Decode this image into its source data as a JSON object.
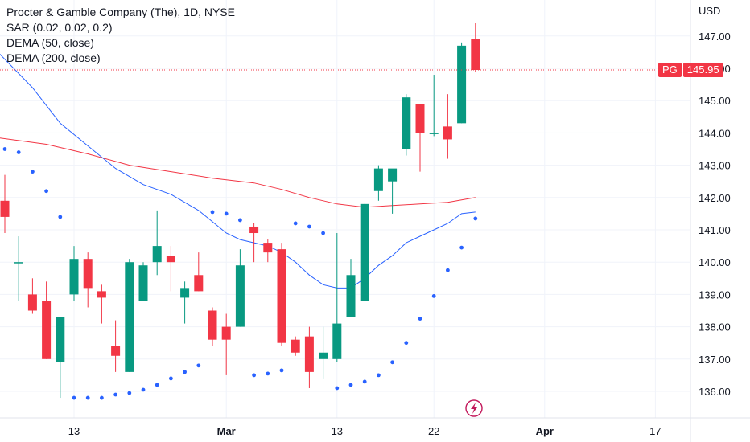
{
  "legend": {
    "title": "Procter & Gamble Company (The), 1D, NYSE",
    "sar": "SAR (0.02, 0.02, 0.2)",
    "dema50": "DEMA (50, close)",
    "dema200": "DEMA (200, close)"
  },
  "axis": {
    "currency": "USD"
  },
  "last_price": {
    "symbol": "PG",
    "value": "145.95"
  },
  "colors": {
    "up": "#089981",
    "down": "#f23645",
    "dema50": "#2962ff",
    "dema200": "#f23645",
    "sar": "#2962ff",
    "grid": "#f0f3fa"
  },
  "chart_data": {
    "type": "candlestick",
    "ylim": [
      135.2,
      148.0
    ],
    "yticks": [
      "136.00",
      "137.00",
      "138.00",
      "139.00",
      "140.00",
      "141.00",
      "142.00",
      "143.00",
      "144.00",
      "145.00",
      "146.00",
      "147.00"
    ],
    "x_range_days": [
      -0.5,
      48
    ],
    "xticks": [
      {
        "day": 5,
        "label": "13",
        "bold": false
      },
      {
        "day": 16,
        "label": "Mar",
        "bold": true
      },
      {
        "day": 24,
        "label": "13",
        "bold": false
      },
      {
        "day": 31,
        "label": "22",
        "bold": false
      },
      {
        "day": 39,
        "label": "Apr",
        "bold": true
      },
      {
        "day": 47,
        "label": "17",
        "bold": false
      }
    ],
    "candles": [
      {
        "d": 0,
        "o": 141.9,
        "h": 142.7,
        "l": 140.9,
        "c": 141.4
      },
      {
        "d": 1,
        "o": 140.0,
        "h": 140.8,
        "l": 138.8,
        "c": 140.0
      },
      {
        "d": 2,
        "o": 139.0,
        "h": 139.5,
        "l": 138.4,
        "c": 138.5
      },
      {
        "d": 3,
        "o": 138.8,
        "h": 139.4,
        "l": 137.0,
        "c": 137.0
      },
      {
        "d": 4,
        "o": 136.9,
        "h": 138.3,
        "l": 135.8,
        "c": 138.3
      },
      {
        "d": 5,
        "o": 139.0,
        "h": 140.5,
        "l": 138.8,
        "c": 140.1
      },
      {
        "d": 6,
        "o": 140.1,
        "h": 140.3,
        "l": 138.6,
        "c": 139.2
      },
      {
        "d": 7,
        "o": 139.1,
        "h": 139.3,
        "l": 138.1,
        "c": 138.9
      },
      {
        "d": 8,
        "o": 137.4,
        "h": 138.2,
        "l": 136.6,
        "c": 137.1
      },
      {
        "d": 9,
        "o": 136.6,
        "h": 140.1,
        "l": 136.6,
        "c": 140.0
      },
      {
        "d": 10,
        "o": 138.8,
        "h": 140.0,
        "l": 138.8,
        "c": 139.9
      },
      {
        "d": 11,
        "o": 140.0,
        "h": 141.6,
        "l": 139.6,
        "c": 140.5
      },
      {
        "d": 12,
        "o": 140.2,
        "h": 140.5,
        "l": 139.1,
        "c": 140.0
      },
      {
        "d": 13,
        "o": 138.9,
        "h": 139.4,
        "l": 138.1,
        "c": 139.2
      },
      {
        "d": 14,
        "o": 139.6,
        "h": 140.3,
        "l": 139.1,
        "c": 139.1
      },
      {
        "d": 15,
        "o": 138.5,
        "h": 138.6,
        "l": 137.4,
        "c": 137.6
      },
      {
        "d": 16,
        "o": 138.0,
        "h": 138.4,
        "l": 136.5,
        "c": 137.6
      },
      {
        "d": 17,
        "o": 138.0,
        "h": 140.4,
        "l": 138.0,
        "c": 139.9
      },
      {
        "d": 18,
        "o": 141.1,
        "h": 141.2,
        "l": 140.0,
        "c": 140.9
      },
      {
        "d": 19,
        "o": 140.6,
        "h": 140.7,
        "l": 140.0,
        "c": 140.3
      },
      {
        "d": 20,
        "o": 140.4,
        "h": 140.6,
        "l": 137.4,
        "c": 137.5
      },
      {
        "d": 21,
        "o": 137.6,
        "h": 137.7,
        "l": 137.1,
        "c": 137.2
      },
      {
        "d": 22,
        "o": 137.7,
        "h": 138.0,
        "l": 136.1,
        "c": 136.6
      },
      {
        "d": 23,
        "o": 137.0,
        "h": 138.0,
        "l": 136.4,
        "c": 137.2
      },
      {
        "d": 24,
        "o": 137.0,
        "h": 140.9,
        "l": 136.9,
        "c": 138.1
      },
      {
        "d": 25,
        "o": 138.3,
        "h": 140.1,
        "l": 138.3,
        "c": 139.6
      },
      {
        "d": 26,
        "o": 138.8,
        "h": 141.8,
        "l": 138.8,
        "c": 141.8
      },
      {
        "d": 27,
        "o": 142.2,
        "h": 143.0,
        "l": 141.9,
        "c": 142.9
      },
      {
        "d": 28,
        "o": 142.5,
        "h": 142.8,
        "l": 141.5,
        "c": 142.9
      },
      {
        "d": 29,
        "o": 143.5,
        "h": 145.2,
        "l": 143.3,
        "c": 145.1
      },
      {
        "d": 30,
        "o": 144.9,
        "h": 144.9,
        "l": 142.8,
        "c": 144.0
      },
      {
        "d": 31,
        "o": 144.0,
        "h": 145.8,
        "l": 143.9,
        "c": 144.0
      },
      {
        "d": 32,
        "o": 144.2,
        "h": 145.2,
        "l": 143.2,
        "c": 143.8
      },
      {
        "d": 33,
        "o": 144.3,
        "h": 146.8,
        "l": 144.3,
        "c": 146.7
      },
      {
        "d": 34,
        "o": 146.9,
        "h": 147.4,
        "l": 145.9,
        "c": 145.95
      }
    ],
    "series": [
      {
        "name": "DEMA (50, close)",
        "color": "#2962ff",
        "points": [
          [
            -0.5,
            146.5
          ],
          [
            2,
            145.4
          ],
          [
            4,
            144.3
          ],
          [
            6,
            143.6
          ],
          [
            8,
            142.9
          ],
          [
            10,
            142.4
          ],
          [
            12,
            142.1
          ],
          [
            14,
            141.6
          ],
          [
            16,
            140.9
          ],
          [
            17,
            140.7
          ],
          [
            18,
            140.6
          ],
          [
            19,
            140.5
          ],
          [
            20,
            140.3
          ],
          [
            21,
            140.0
          ],
          [
            22,
            139.6
          ],
          [
            23,
            139.3
          ],
          [
            24,
            139.2
          ],
          [
            25,
            139.2
          ],
          [
            26,
            139.5
          ],
          [
            27,
            139.9
          ],
          [
            28,
            140.2
          ],
          [
            29,
            140.6
          ],
          [
            30,
            140.8
          ],
          [
            31,
            141.0
          ],
          [
            32,
            141.2
          ],
          [
            33,
            141.5
          ],
          [
            34,
            141.55
          ]
        ]
      },
      {
        "name": "DEMA (200, close)",
        "color": "#f23645",
        "points": [
          [
            -0.5,
            143.85
          ],
          [
            3,
            143.65
          ],
          [
            6,
            143.35
          ],
          [
            9,
            143.0
          ],
          [
            12,
            142.8
          ],
          [
            15,
            142.6
          ],
          [
            18,
            142.45
          ],
          [
            20,
            142.25
          ],
          [
            22,
            142.0
          ],
          [
            24,
            141.8
          ],
          [
            26,
            141.7
          ],
          [
            28,
            141.75
          ],
          [
            30,
            141.8
          ],
          [
            32,
            141.85
          ],
          [
            34,
            142.0
          ]
        ]
      }
    ],
    "sar": [
      {
        "d": 0,
        "v": 143.5
      },
      {
        "d": 1,
        "v": 143.4
      },
      {
        "d": 2,
        "v": 142.8
      },
      {
        "d": 3,
        "v": 142.2
      },
      {
        "d": 4,
        "v": 141.4
      },
      {
        "d": 5,
        "v": 135.8
      },
      {
        "d": 6,
        "v": 135.8
      },
      {
        "d": 7,
        "v": 135.8
      },
      {
        "d": 8,
        "v": 135.9
      },
      {
        "d": 9,
        "v": 135.95
      },
      {
        "d": 10,
        "v": 136.05
      },
      {
        "d": 11,
        "v": 136.2
      },
      {
        "d": 12,
        "v": 136.4
      },
      {
        "d": 13,
        "v": 136.6
      },
      {
        "d": 14,
        "v": 136.8
      },
      {
        "d": 15,
        "v": 141.55
      },
      {
        "d": 16,
        "v": 141.5
      },
      {
        "d": 17,
        "v": 141.3
      },
      {
        "d": 18,
        "v": 136.5
      },
      {
        "d": 19,
        "v": 136.55
      },
      {
        "d": 20,
        "v": 136.65
      },
      {
        "d": 21,
        "v": 141.2
      },
      {
        "d": 22,
        "v": 141.1
      },
      {
        "d": 23,
        "v": 140.9
      },
      {
        "d": 24,
        "v": 136.1
      },
      {
        "d": 25,
        "v": 136.2
      },
      {
        "d": 26,
        "v": 136.3
      },
      {
        "d": 27,
        "v": 136.5
      },
      {
        "d": 28,
        "v": 136.9
      },
      {
        "d": 29,
        "v": 137.5
      },
      {
        "d": 30,
        "v": 138.25
      },
      {
        "d": 31,
        "v": 138.95
      },
      {
        "d": 32,
        "v": 139.75
      },
      {
        "d": 33,
        "v": 140.45
      },
      {
        "d": 34,
        "v": 141.35
      }
    ],
    "last_price_line": 145.95
  }
}
